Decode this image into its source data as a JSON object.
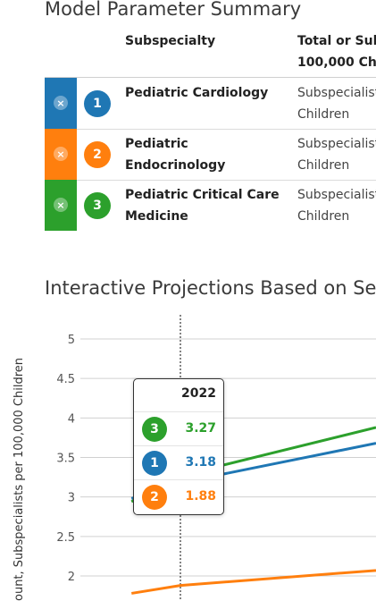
{
  "summary": {
    "title": "Model Parameter Summary",
    "headers": {
      "subspecialty": "Subspecialty",
      "total_line1": "Total or Sub",
      "total_line2": "100,000 Chi"
    },
    "rows": [
      {
        "remove_icon": "close-icon",
        "number": "1",
        "color": "#1f77b4",
        "name_line1": "Pediatric Cardiology",
        "name_line2": "",
        "metric_line1": "Subspecialist",
        "metric_line2": "Children"
      },
      {
        "remove_icon": "close-icon",
        "number": "2",
        "color": "#ff7f0e",
        "name_line1": "Pediatric",
        "name_line2": "Endocrinology",
        "metric_line1": "Subspecialist",
        "metric_line2": "Children"
      },
      {
        "remove_icon": "close-icon",
        "number": "3",
        "color": "#2ca02c",
        "name_line1": "Pediatric Critical Care",
        "name_line2": "Medicine",
        "metric_line1": "Subspecialist",
        "metric_line2": "Children"
      }
    ]
  },
  "projections": {
    "title": "Interactive Projections Based on Se",
    "tooltip": {
      "year": "2022",
      "rows": [
        {
          "number": "3",
          "value": "3.27",
          "color": "#2ca02c"
        },
        {
          "number": "1",
          "value": "3.18",
          "color": "#1f77b4"
        },
        {
          "number": "2",
          "value": "1.88",
          "color": "#ff7f0e"
        }
      ]
    }
  },
  "chart_data": {
    "type": "line",
    "ylabel": "ount, Subspecialists per 100,000 Children",
    "y_ticks": [
      "5",
      "4.5",
      "4",
      "3.5",
      "3",
      "2.5",
      "2"
    ],
    "ylim": [
      1.8,
      5.2
    ],
    "hover_year": 2022,
    "grid": true,
    "series": [
      {
        "name": "Pediatric Cardiology",
        "color": "#1f77b4",
        "x": [
          2020,
          2022,
          2030
        ],
        "values": [
          2.98,
          3.18,
          3.68
        ]
      },
      {
        "name": "Pediatric Endocrinology",
        "color": "#ff7f0e",
        "x": [
          2020,
          2022,
          2030
        ],
        "values": [
          1.78,
          1.88,
          2.07
        ]
      },
      {
        "name": "Pediatric Critical Care Medicine",
        "color": "#2ca02c",
        "x": [
          2020,
          2022,
          2030
        ],
        "values": [
          2.94,
          3.27,
          3.88
        ]
      }
    ]
  }
}
